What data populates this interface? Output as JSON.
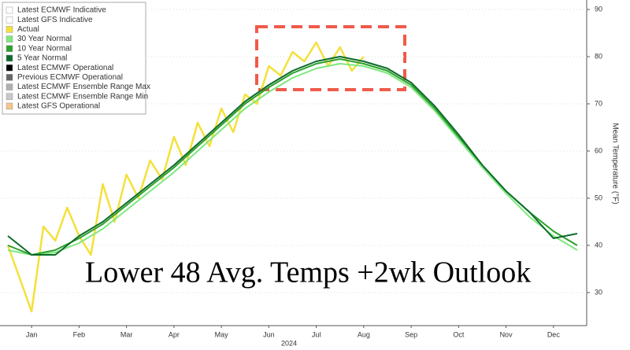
{
  "chart_data": {
    "type": "line",
    "annotation": "Lower 48 Avg. Temps +2wk Outlook",
    "y_label": "Mean Temperature (°F)",
    "x_label": "2024",
    "xlim": [
      0,
      12.2
    ],
    "xticks": [
      {
        "value": 0.5,
        "label": "Jan"
      },
      {
        "value": 1.5,
        "label": "Feb"
      },
      {
        "value": 2.5,
        "label": "Mar"
      },
      {
        "value": 3.5,
        "label": "Apr"
      },
      {
        "value": 4.5,
        "label": "May"
      },
      {
        "value": 5.5,
        "label": "Jun"
      },
      {
        "value": 6.5,
        "label": "Jul"
      },
      {
        "value": 7.5,
        "label": "Aug"
      },
      {
        "value": 8.5,
        "label": "Sep"
      },
      {
        "value": 9.5,
        "label": "Oct"
      },
      {
        "value": 10.5,
        "label": "Nov"
      },
      {
        "value": 11.5,
        "label": "Dec"
      }
    ],
    "ylim": [
      23,
      92
    ],
    "yticks": [
      30,
      40,
      50,
      60,
      70,
      80,
      90
    ],
    "grid": true,
    "series": [
      {
        "name": "Latest ECMWF Indicative",
        "color": "#ffffff"
      },
      {
        "name": "Latest GFS Indicative",
        "color": "#ffffff"
      },
      {
        "name": "Actual",
        "color": "#f5e03a",
        "x": [
          0,
          0.25,
          0.5,
          0.75,
          1,
          1.25,
          1.5,
          1.75,
          2,
          2.25,
          2.5,
          2.75,
          3,
          3.25,
          3.5,
          3.75,
          4,
          4.25,
          4.5,
          4.75,
          5,
          5.25,
          5.5,
          5.75,
          6,
          6.25,
          6.5,
          6.75,
          7,
          7.25,
          7.5
        ],
        "values": [
          40,
          33,
          26,
          44,
          41,
          48,
          42,
          38,
          53,
          45,
          55,
          50,
          58,
          54,
          63,
          57,
          66,
          61,
          69,
          64,
          72,
          70,
          78,
          76,
          81,
          79,
          83,
          78,
          82,
          77,
          80
        ]
      },
      {
        "name": "30 Year Normal",
        "color": "#7ee87e",
        "x": [
          0,
          0.5,
          1,
          1.5,
          2,
          2.5,
          3,
          3.5,
          4,
          4.5,
          5,
          5.5,
          6,
          6.5,
          7,
          7.5,
          8,
          8.5,
          9,
          9.5,
          10,
          10.5,
          11,
          11.5,
          12
        ],
        "values": [
          39,
          38,
          38.5,
          40.5,
          43.5,
          47.5,
          51.5,
          55.5,
          60,
          64.5,
          69,
          72.5,
          75.5,
          77.5,
          78.5,
          78,
          76.5,
          73.5,
          68.5,
          62.5,
          56.5,
          51,
          46,
          42,
          39
        ]
      },
      {
        "name": "10 Year Normal",
        "color": "#2ca02c",
        "x": [
          0,
          0.5,
          1,
          1.5,
          2,
          2.5,
          3,
          3.5,
          4,
          4.5,
          5,
          5.5,
          6,
          6.5,
          7,
          7.5,
          8,
          8.5,
          9,
          9.5,
          10,
          10.5,
          11,
          11.5,
          12
        ],
        "values": [
          40,
          38,
          39,
          41.5,
          44.5,
          48.5,
          52.5,
          56.5,
          61,
          65.5,
          70,
          73.5,
          76.5,
          78.5,
          79.5,
          78.5,
          77,
          74,
          69,
          63,
          57,
          51.5,
          47,
          43,
          40
        ]
      },
      {
        "name": "5 Year Normal",
        "color": "#0d6b2a",
        "x": [
          0,
          0.5,
          1,
          1.5,
          2,
          2.5,
          3,
          3.5,
          4,
          4.5,
          5,
          5.5,
          6,
          6.5,
          7,
          7.5,
          8,
          8.5,
          9,
          9.5,
          10,
          10.5,
          11,
          11.5,
          12
        ],
        "values": [
          42,
          38,
          38,
          42,
          45,
          49,
          53,
          57,
          61.5,
          66,
          70.5,
          74,
          77,
          79,
          80,
          79,
          77.5,
          74.5,
          69.5,
          63.5,
          57,
          51.5,
          47,
          41.5,
          42.5
        ]
      },
      {
        "name": "Latest ECMWF Operational",
        "color": "#000000"
      },
      {
        "name": "Previous ECMWF Operational",
        "color": "#666666"
      },
      {
        "name": "Latest ECMWF Ensemble Range Max",
        "color": "#b0b0b0"
      },
      {
        "name": "Latest ECMWF Ensemble Range Min",
        "color": "#c8c8c8"
      },
      {
        "name": "Latest GFS Operational",
        "color": "#f6c48a"
      }
    ]
  }
}
